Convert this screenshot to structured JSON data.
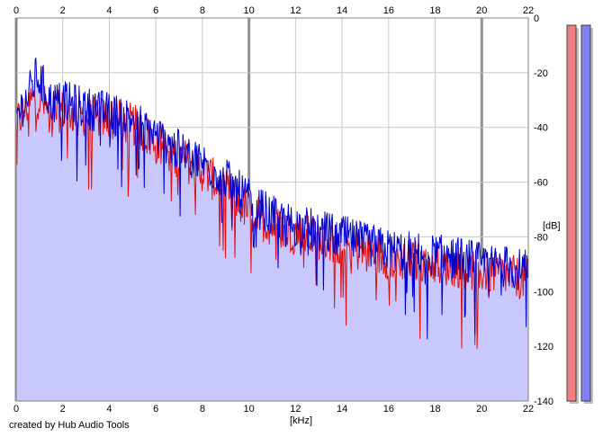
{
  "chart_data": {
    "type": "area",
    "title": "",
    "xlabel": "[kHz]",
    "ylabel": "[dB]",
    "xlim": [
      0,
      22
    ],
    "ylim": [
      -140,
      0
    ],
    "x_ticks": [
      0,
      2,
      4,
      6,
      8,
      10,
      12,
      14,
      16,
      18,
      20,
      22
    ],
    "y_ticks": [
      0,
      -20,
      -40,
      -60,
      -80,
      -100,
      -120,
      -140
    ],
    "x_tick_labels": [
      "0",
      "2",
      "4",
      "6",
      "8",
      "10",
      "12",
      "14",
      "16",
      "18",
      "20",
      "22"
    ],
    "y_tick_labels": [
      "0",
      "-20",
      "-40",
      "-60",
      "-80",
      "-100",
      "-120",
      "-140"
    ],
    "grid": true,
    "series": [
      {
        "name": "",
        "color": "#e01010",
        "x": [
          0.0,
          0.5,
          0.9,
          1.5,
          2.0,
          3.0,
          4.0,
          5.0,
          6.0,
          7.0,
          8.0,
          9.0,
          10.0,
          11.0,
          12.0,
          13.0,
          14.0,
          15.0,
          16.0,
          17.0,
          18.0,
          19.0,
          20.0,
          21.0,
          22.0
        ],
        "values": [
          -38,
          -31,
          -28,
          -34,
          -33,
          -35,
          -36,
          -38,
          -45,
          -50,
          -55,
          -62,
          -70,
          -75,
          -78,
          -80,
          -82,
          -85,
          -87,
          -88,
          -89,
          -90,
          -92,
          -93,
          -95
        ]
      },
      {
        "name": "",
        "color": "#0000d0",
        "x": [
          0.0,
          0.5,
          0.9,
          1.5,
          2.0,
          3.0,
          4.0,
          5.0,
          6.0,
          7.0,
          8.0,
          9.0,
          10.0,
          11.0,
          12.0,
          13.0,
          14.0,
          15.0,
          16.0,
          17.0,
          18.0,
          19.0,
          20.0,
          21.0,
          22.0
        ],
        "values": [
          -35,
          -28,
          -20,
          -30,
          -30,
          -32,
          -34,
          -36,
          -42,
          -48,
          -52,
          -58,
          -66,
          -72,
          -75,
          -77,
          -79,
          -82,
          -84,
          -85,
          -86,
          -87,
          -89,
          -90,
          -92
        ]
      }
    ],
    "fill_color": "#c8c8ff",
    "grid_color": "#c8c8c8",
    "major_grid_color": "#909090",
    "level_meters": [
      {
        "name": "left-channel",
        "color": "#f08080",
        "level": 1.0
      },
      {
        "name": "right-channel",
        "color": "#8080f0",
        "level": 1.0
      }
    ]
  },
  "footer": {
    "credit": "created by Hub Audio Tools"
  }
}
